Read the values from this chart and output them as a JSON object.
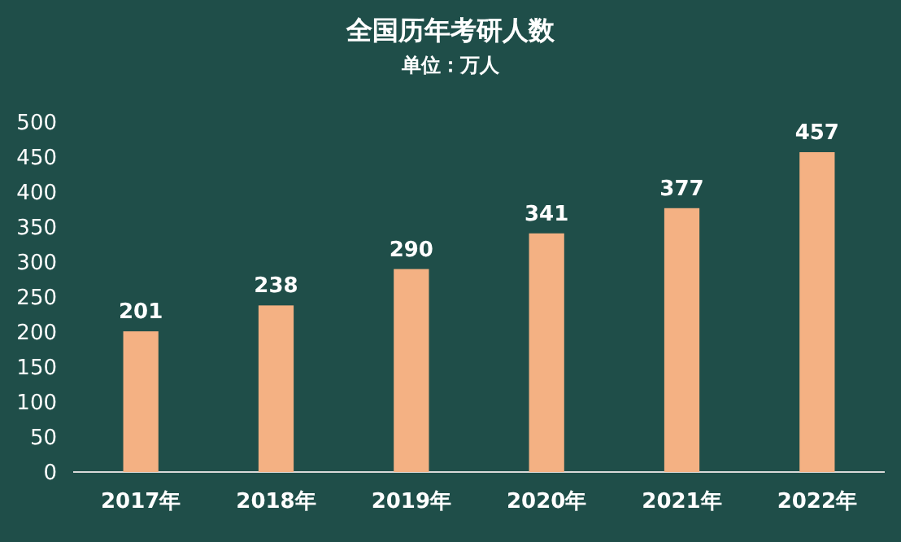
{
  "chart_data": {
    "type": "bar",
    "title": "全国历年考研人数",
    "subtitle": "单位：万人",
    "categories": [
      "2017年",
      "2018年",
      "2019年",
      "2020年",
      "2021年",
      "2022年"
    ],
    "values": [
      201,
      238,
      290,
      341,
      377,
      457
    ],
    "color": "#f4b183",
    "ylim": [
      0,
      500
    ],
    "yticks": [
      0,
      50,
      100,
      150,
      200,
      250,
      300,
      350,
      400,
      450,
      500
    ],
    "grid": false,
    "data_labels": true
  }
}
